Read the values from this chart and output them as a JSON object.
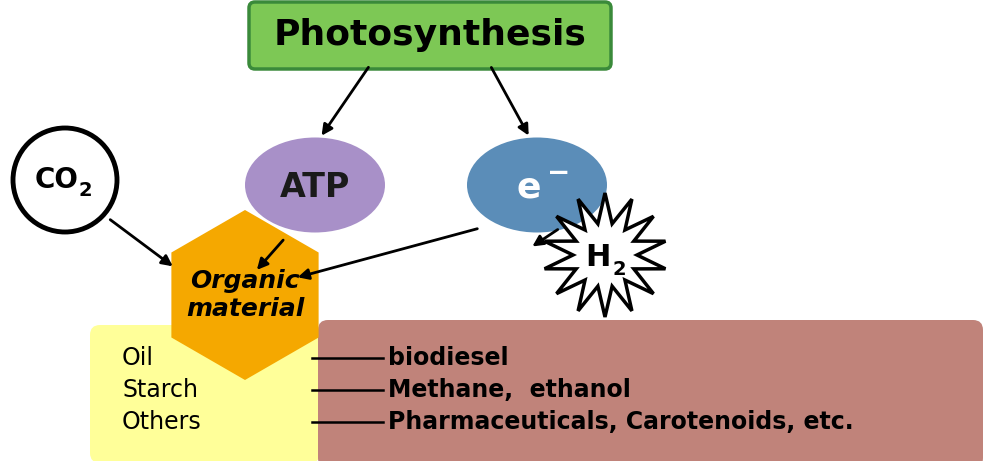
{
  "title": "Photosynthesis",
  "title_bg": "#7dc855",
  "title_text_color": "#000000",
  "atp_color": "#a890c8",
  "electron_color": "#5b8db8",
  "co2_color": "#ffffff",
  "organic_color": "#f5a800",
  "organic_light_color": "#ffff99",
  "products_bg": "#c0837a",
  "h2_burst_color": "#ffffff",
  "fig_bg": "#ffffff",
  "left_items": [
    "Oil",
    "Starch",
    "Others"
  ],
  "right_items": [
    "biodiesel",
    "Methane,  ethanol",
    "Pharmaceuticals, Carotenoids, etc."
  ]
}
